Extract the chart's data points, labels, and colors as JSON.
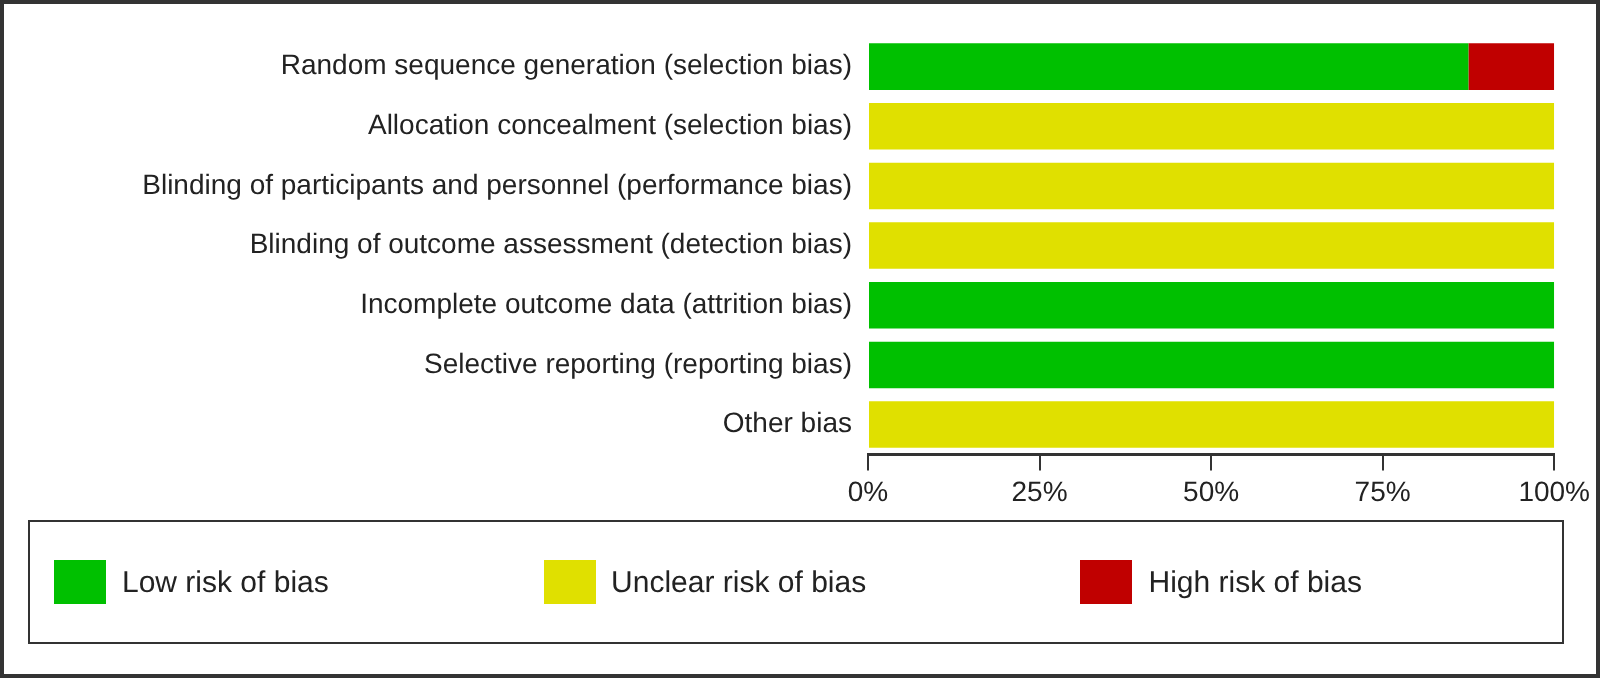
{
  "chart_data": {
    "type": "bar",
    "orientation": "horizontal",
    "stacked": true,
    "categories": [
      "Random sequence generation (selection bias)",
      "Allocation concealment (selection bias)",
      "Blinding of participants and personnel (performance bias)",
      "Blinding of outcome assessment (detection bias)",
      "Incomplete outcome data (attrition bias)",
      "Selective reporting (reporting bias)",
      "Other bias"
    ],
    "series": [
      {
        "name": "Low risk of bias",
        "color": "#00c000",
        "values": [
          87.5,
          null,
          null,
          null,
          100,
          100,
          null
        ]
      },
      {
        "name": "Unclear risk of bias",
        "color": "#e0e000",
        "values": [
          null,
          100,
          100,
          100,
          null,
          null,
          100
        ]
      },
      {
        "name": "High risk of bias",
        "color": "#c00000",
        "values": [
          12.5,
          null,
          null,
          null,
          null,
          null,
          null
        ]
      }
    ],
    "xlim": [
      0,
      100
    ],
    "xticks": [
      {
        "value": 0,
        "label": "0%"
      },
      {
        "value": 25,
        "label": "25%"
      },
      {
        "value": 50,
        "label": "50%"
      },
      {
        "value": 75,
        "label": "75%"
      },
      {
        "value": 100,
        "label": "100%"
      }
    ],
    "grid": false,
    "legend": "bottom"
  }
}
